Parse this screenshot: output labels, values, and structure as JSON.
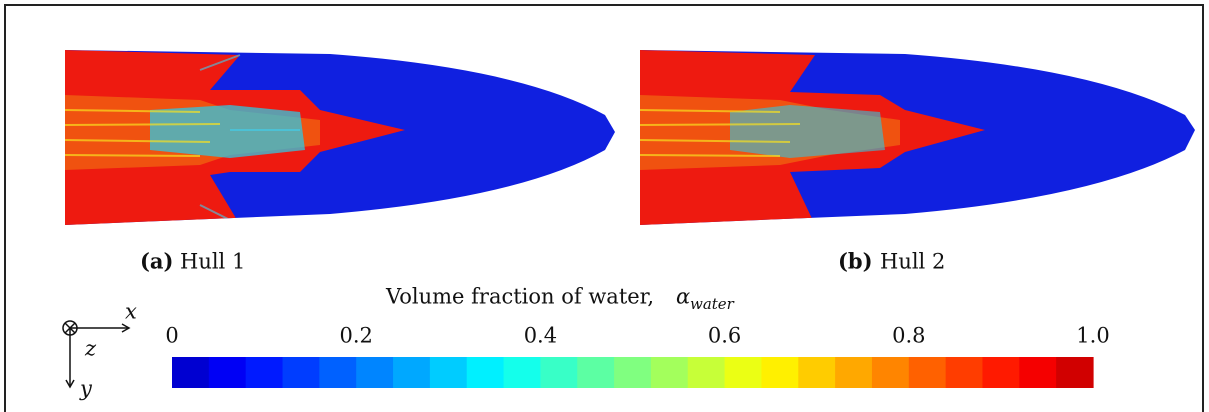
{
  "figure": {
    "panels": [
      {
        "label": "(a)",
        "caption": "Hull 1"
      },
      {
        "label": "(b)",
        "caption": "Hull 2"
      }
    ],
    "colorbar": {
      "title": "Volume fraction of water,",
      "symbol": "α",
      "symbol_subscript": "water",
      "lim": [
        0,
        1
      ],
      "ticks": [
        0,
        0.2,
        0.4,
        0.6,
        0.8,
        {
          "value": 1,
          "label": "1.0"
        }
      ]
    },
    "axes": {
      "x": "x",
      "y": "y",
      "z": "z"
    }
  }
}
